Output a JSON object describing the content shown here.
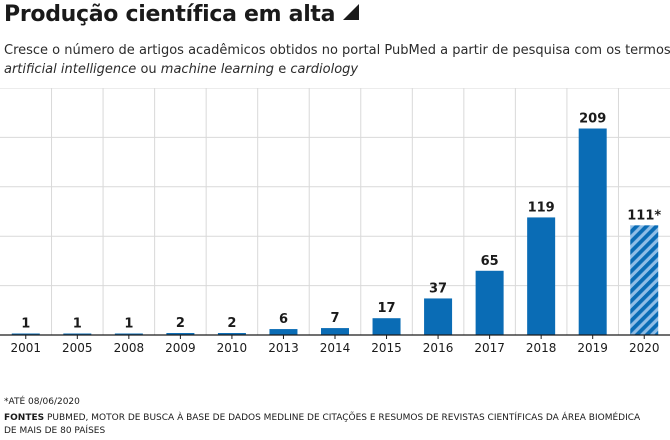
{
  "title": "Produção científica em alta",
  "subtitle": {
    "line1": "Cresce o número de artigos acadêmicos obtidos no portal PubMed a partir de pesquisa com os termos",
    "term1": "artificial intelligence",
    "joiner1": "ou",
    "term2": "machine learning",
    "joiner2": "e",
    "term3": "cardiology"
  },
  "footnote": "*ATÉ 08/06/2020",
  "sources": {
    "label": "FONTES",
    "text": "PUBMED, MOTOR DE BUSCA À BASE DE DADOS MEDLINE DE CITAÇÕES E RESUMOS DE REVISTAS CIENTÍFICAS DA ÁREA BIOMÉDICA DE MAIS DE 80 PAÍSES"
  },
  "colors": {
    "bar": "#0a6cb5",
    "grid": "#d9d9d9",
    "axis": "#1a1a1a",
    "partial_stripe": "#8fbde6"
  },
  "chart_data": {
    "type": "bar",
    "categories": [
      "2001",
      "2005",
      "2008",
      "2009",
      "2010",
      "2013",
      "2014",
      "2015",
      "2016",
      "2017",
      "2018",
      "2019",
      "2020"
    ],
    "values": [
      1,
      1,
      1,
      2,
      2,
      6,
      7,
      17,
      37,
      65,
      119,
      209,
      111
    ],
    "value_labels": [
      "1",
      "1",
      "1",
      "2",
      "2",
      "6",
      "7",
      "17",
      "37",
      "65",
      "119",
      "209",
      "111*"
    ],
    "partial_categories": [
      "2020"
    ],
    "ylim": [
      0,
      250
    ],
    "grid": true,
    "title": "",
    "xlabel": "",
    "ylabel": ""
  }
}
